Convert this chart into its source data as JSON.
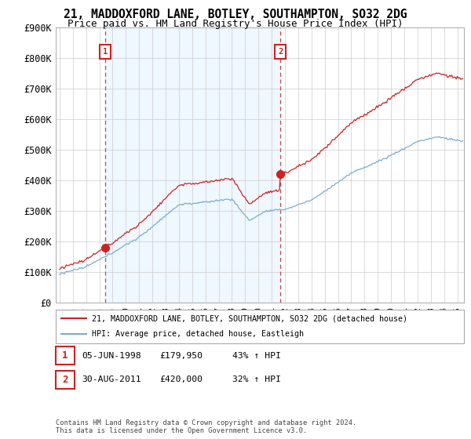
{
  "title": "21, MADDOXFORD LANE, BOTLEY, SOUTHAMPTON, SO32 2DG",
  "subtitle": "Price paid vs. HM Land Registry's House Price Index (HPI)",
  "ylim": [
    0,
    900000
  ],
  "yticks": [
    0,
    100000,
    200000,
    300000,
    400000,
    500000,
    600000,
    700000,
    800000,
    900000
  ],
  "ytick_labels": [
    "£0",
    "£100K",
    "£200K",
    "£300K",
    "£400K",
    "£500K",
    "£600K",
    "£700K",
    "£800K",
    "£900K"
  ],
  "sale1_year": 1998.43,
  "sale1_price": 179950,
  "sale2_year": 2011.66,
  "sale2_price": 420000,
  "hpi_line_color": "#7aadd4",
  "price_line_color": "#cc2222",
  "dashed_line_color": "#cc4444",
  "fill_color": "#ddeeff",
  "fill_alpha": 0.45,
  "grid_color": "#cccccc",
  "background_color": "#ffffff",
  "legend_line1": "21, MADDOXFORD LANE, BOTLEY, SOUTHAMPTON, SO32 2DG (detached house)",
  "legend_line2": "HPI: Average price, detached house, Eastleigh",
  "annotation1_date": "05-JUN-1998",
  "annotation1_price": "£179,950",
  "annotation1_hpi": "43% ↑ HPI",
  "annotation2_date": "30-AUG-2011",
  "annotation2_price": "£420,000",
  "annotation2_hpi": "32% ↑ HPI",
  "footer": "Contains HM Land Registry data © Crown copyright and database right 2024.\nThis data is licensed under the Open Government Licence v3.0.",
  "title_fontsize": 10.5,
  "subtitle_fontsize": 9.0
}
